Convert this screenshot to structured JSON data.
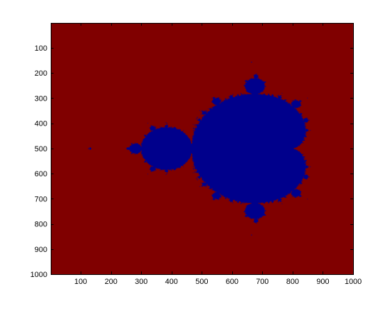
{
  "figure": {
    "background": "#ffffff"
  },
  "chart_data": {
    "type": "heatmap",
    "title": "",
    "xlabel": "",
    "ylabel": "",
    "xlim": [
      1,
      1000
    ],
    "ylim": [
      1,
      1000
    ],
    "y_reversed": true,
    "x_ticks": [
      100,
      200,
      300,
      400,
      500,
      600,
      700,
      800,
      900,
      1000
    ],
    "y_ticks": [
      100,
      200,
      300,
      400,
      500,
      600,
      700,
      800,
      900,
      1000
    ],
    "colormap": {
      "outside_value": "#800000",
      "inside_value": "#00008c"
    },
    "image": {
      "kind": "mandelbrot-set",
      "resolution": [
        1000,
        1000
      ],
      "real_range": [
        -2.15,
        0.85
      ],
      "imag_range": [
        -1.5,
        1.5
      ]
    }
  }
}
